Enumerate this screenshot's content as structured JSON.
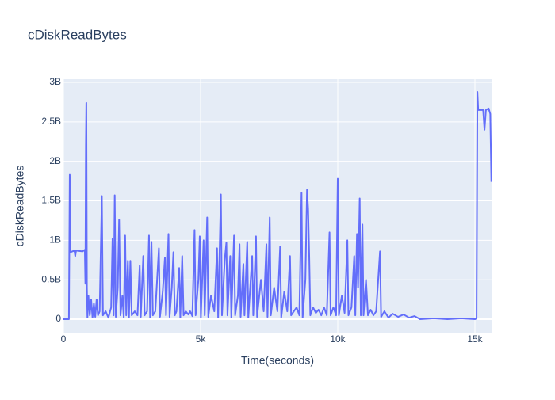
{
  "chart_data": {
    "type": "line",
    "title": "cDiskReadBytes",
    "xlabel": "Time(seconds)",
    "ylabel": "cDiskReadBytes",
    "color": "#636efa",
    "grid": true,
    "xlim": [
      0,
      15607
    ],
    "ylim": [
      -170000000,
      3040000000
    ],
    "xticks": [
      0,
      {
        "value": 5000,
        "label": "5k"
      },
      {
        "value": 10000,
        "label": "10k"
      },
      {
        "value": 15000,
        "label": "15k"
      }
    ],
    "yticks": [
      0,
      {
        "value": 500000000,
        "label": "0.5B"
      },
      {
        "value": 1000000000,
        "label": "1B"
      },
      {
        "value": 1500000000,
        "label": "1.5B"
      },
      {
        "value": 2000000000,
        "label": "2B"
      },
      {
        "value": 2500000000,
        "label": "2.5B"
      },
      {
        "value": 3000000000,
        "label": "3B"
      }
    ],
    "x": [
      0,
      200,
      230,
      260,
      400,
      430,
      460,
      700,
      780,
      800,
      820,
      835,
      855,
      875,
      910,
      960,
      1010,
      1060,
      1110,
      1160,
      1210,
      1260,
      1320,
      1400,
      1440,
      1540,
      1640,
      1740,
      1790,
      1830,
      1870,
      1910,
      1980,
      2030,
      2080,
      2150,
      2200,
      2250,
      2290,
      2350,
      2390,
      2440,
      2490,
      2600,
      2700,
      2780,
      2820,
      2910,
      2960,
      3050,
      3120,
      3160,
      3210,
      3260,
      3350,
      3480,
      3520,
      3620,
      3700,
      3740,
      3830,
      3870,
      3950,
      4010,
      4060,
      4120,
      4220,
      4260,
      4330,
      4380,
      4460,
      4550,
      4620,
      4700,
      4780,
      4820,
      4920,
      4970,
      5010,
      5110,
      5150,
      5240,
      5280,
      5380,
      5500,
      5600,
      5640,
      5740,
      5780,
      5880,
      5940,
      5980,
      6080,
      6120,
      6220,
      6260,
      6360,
      6420,
      6460,
      6560,
      6600,
      6700,
      6740,
      6880,
      6920,
      7020,
      7060,
      7200,
      7300,
      7400,
      7440,
      7520,
      7560,
      7680,
      7800,
      7900,
      7940,
      8050,
      8160,
      8260,
      8300,
      8400,
      8500,
      8600,
      8680,
      8720,
      8820,
      8880,
      8920,
      8960,
      9000,
      9100,
      9200,
      9300,
      9400,
      9500,
      9600,
      9700,
      9740,
      9840,
      9940,
      10000,
      10040,
      10150,
      10250,
      10350,
      10390,
      10500,
      10600,
      10640,
      10700,
      10740,
      10800,
      10840,
      10900,
      10940,
      11030,
      11100,
      11200,
      11300,
      11400,
      11540,
      11580,
      11700,
      11850,
      12000,
      12200,
      12400,
      12600,
      12800,
      13000,
      13500,
      14000,
      14500,
      15000,
      15060,
      15090,
      15120,
      15300,
      15350,
      15400,
      15500,
      15560,
      15600
    ],
    "values": [
      0,
      0,
      1830000000,
      850000000,
      870000000,
      800000000,
      870000000,
      860000000,
      880000000,
      450000000,
      2200000000,
      2740000000,
      400000000,
      20000000,
      300000000,
      50000000,
      250000000,
      20000000,
      200000000,
      30000000,
      250000000,
      50000000,
      100000000,
      1560000000,
      50000000,
      100000000,
      20000000,
      150000000,
      1020000000,
      50000000,
      1570000000,
      30000000,
      400000000,
      1260000000,
      50000000,
      300000000,
      20000000,
      1060000000,
      50000000,
      740000000,
      20000000,
      740000000,
      50000000,
      100000000,
      50000000,
      680000000,
      30000000,
      800000000,
      50000000,
      100000000,
      1060000000,
      20000000,
      980000000,
      50000000,
      100000000,
      900000000,
      30000000,
      350000000,
      780000000,
      50000000,
      1080000000,
      30000000,
      400000000,
      850000000,
      50000000,
      100000000,
      650000000,
      20000000,
      800000000,
      50000000,
      100000000,
      60000000,
      100000000,
      40000000,
      1130000000,
      50000000,
      500000000,
      1050000000,
      20000000,
      1000000000,
      50000000,
      1290000000,
      30000000,
      300000000,
      100000000,
      900000000,
      20000000,
      1580000000,
      50000000,
      750000000,
      970000000,
      50000000,
      800000000,
      20000000,
      1060000000,
      50000000,
      300000000,
      950000000,
      30000000,
      700000000,
      50000000,
      980000000,
      20000000,
      800000000,
      50000000,
      1050000000,
      30000000,
      500000000,
      100000000,
      950000000,
      30000000,
      1290000000,
      50000000,
      400000000,
      100000000,
      920000000,
      20000000,
      350000000,
      100000000,
      800000000,
      50000000,
      100000000,
      150000000,
      50000000,
      1600000000,
      20000000,
      500000000,
      1640000000,
      1400000000,
      800000000,
      50000000,
      150000000,
      80000000,
      120000000,
      50000000,
      150000000,
      50000000,
      1100000000,
      50000000,
      150000000,
      50000000,
      1780000000,
      50000000,
      300000000,
      80000000,
      1000000000,
      50000000,
      150000000,
      800000000,
      50000000,
      1080000000,
      400000000,
      1530000000,
      50000000,
      1200000000,
      50000000,
      500000000,
      50000000,
      120000000,
      50000000,
      100000000,
      860000000,
      30000000,
      100000000,
      20000000,
      70000000,
      30000000,
      60000000,
      20000000,
      40000000,
      0,
      10000000,
      0,
      10000000,
      0,
      10000000,
      2880000000,
      2650000000,
      2650000000,
      2400000000,
      2650000000,
      2670000000,
      2600000000,
      1740000000
    ]
  }
}
